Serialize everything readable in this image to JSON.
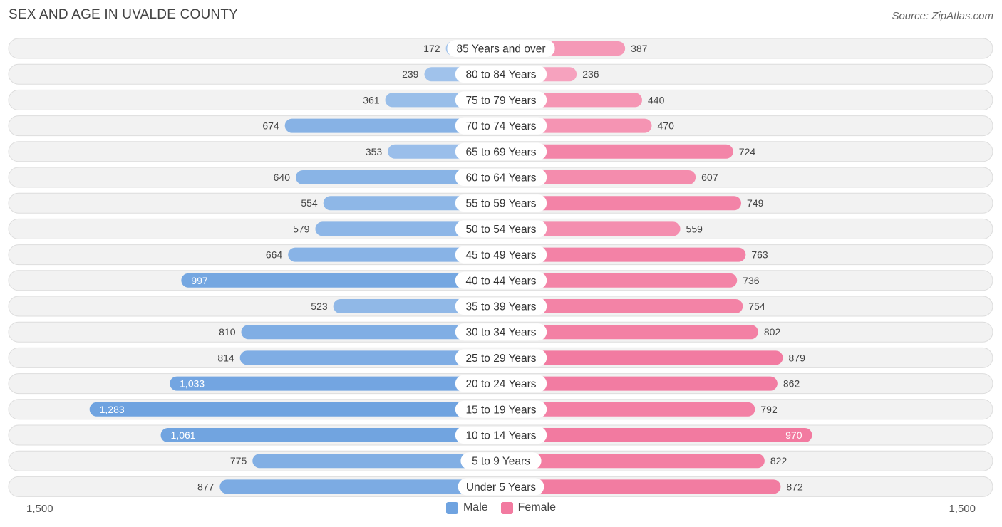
{
  "title": "SEX AND AGE IN UVALDE COUNTY",
  "source": "Source: ZipAtlas.com",
  "axis": {
    "left_label": "1,500",
    "right_label": "1,500"
  },
  "legend": {
    "male_label": "Male",
    "female_label": "Female"
  },
  "colors": {
    "male_dark": "#6fa3e0",
    "male_light": "#aecbee",
    "female_dark": "#f27aa0",
    "female_light": "#f8b0c8",
    "row_bg": "#f2f2f2",
    "row_border": "#dddddd"
  },
  "chart_data": {
    "type": "bar",
    "orientation": "horizontal-diverging",
    "xlim": [
      -1500,
      1500
    ],
    "categories": [
      "85 Years and over",
      "80 to 84 Years",
      "75 to 79 Years",
      "70 to 74 Years",
      "65 to 69 Years",
      "60 to 64 Years",
      "55 to 59 Years",
      "50 to 54 Years",
      "45 to 49 Years",
      "40 to 44 Years",
      "35 to 39 Years",
      "30 to 34 Years",
      "25 to 29 Years",
      "20 to 24 Years",
      "15 to 19 Years",
      "10 to 14 Years",
      "5 to 9 Years",
      "Under 5 Years"
    ],
    "series": [
      {
        "name": "Male",
        "values": [
          172,
          239,
          361,
          674,
          353,
          640,
          554,
          579,
          664,
          997,
          523,
          810,
          814,
          1033,
          1283,
          1061,
          775,
          877
        ],
        "labels": [
          "172",
          "239",
          "361",
          "674",
          "353",
          "640",
          "554",
          "579",
          "664",
          "997",
          "523",
          "810",
          "814",
          "1,033",
          "1,283",
          "1,061",
          "775",
          "877"
        ]
      },
      {
        "name": "Female",
        "values": [
          387,
          236,
          440,
          470,
          724,
          607,
          749,
          559,
          763,
          736,
          754,
          802,
          879,
          862,
          792,
          970,
          822,
          872
        ],
        "labels": [
          "387",
          "236",
          "440",
          "470",
          "724",
          "607",
          "749",
          "559",
          "763",
          "736",
          "754",
          "802",
          "879",
          "862",
          "792",
          "970",
          "822",
          "872"
        ]
      }
    ]
  }
}
